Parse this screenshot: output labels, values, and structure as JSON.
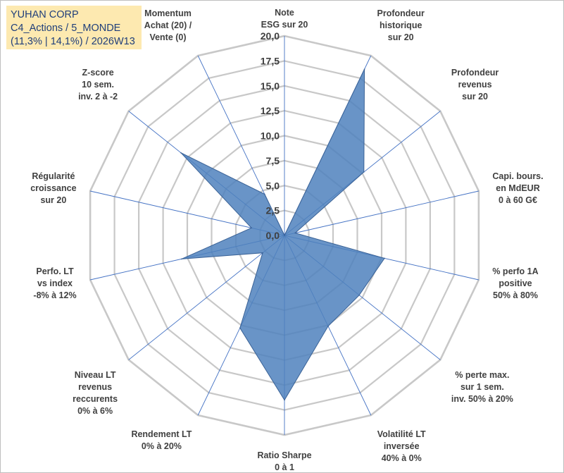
{
  "header": {
    "line1": "YUHAN CORP",
    "line2": "C4_Actions / 5_MONDE",
    "line3": "(11,3% | 14,1%) / 2026W13"
  },
  "colors": {
    "fill": "#4f81bd",
    "stroke": "#3a6296",
    "grid": "#c8c8c8",
    "spokes": "#4472c4",
    "title_bg": "#fde9b0",
    "title_text": "#1f3e7a"
  },
  "chart_data": {
    "type": "radar",
    "rmin": 0,
    "rmax": 20,
    "step": 2.5,
    "tick_labels": [
      "0,0",
      "2,5",
      "5,0",
      "7,5",
      "10,0",
      "12,5",
      "15,0",
      "17,5",
      "20,0"
    ],
    "axes": [
      [
        "Note",
        "ESG sur 20"
      ],
      [
        "Profondeur",
        "historique",
        "sur 20"
      ],
      [
        "Profondeur",
        "revenus",
        "sur 20"
      ],
      [
        "Capi. bours.",
        "en MdEUR",
        "0 à 60 G€"
      ],
      [
        "% perfo 1A",
        "positive",
        "50% à 80%"
      ],
      [
        "% perte max.",
        "sur 1 sem.",
        "inv. 50% à 20%"
      ],
      [
        "Volatilité LT",
        "inversée",
        "40% à 0%"
      ],
      [
        "Ratio Sharpe",
        "0 à 1"
      ],
      [
        "Rendement LT",
        "0% à 20%"
      ],
      [
        "Niveau LT",
        "revenus",
        "reccurents",
        "0% à 6%"
      ],
      [
        "Perfo. LT",
        "vs index",
        "-8% à 12%"
      ],
      [
        "Régularité",
        "croissance",
        "sur 20"
      ],
      [
        "Z-score",
        "10 sem.",
        "inv. 2 à -2"
      ],
      [
        "Momentum",
        "Achat (20) /",
        "Vente (0)"
      ]
    ],
    "values": [
      0,
      18.5,
      10.2,
      1.1,
      10.3,
      9.6,
      10.1,
      16.5,
      10.3,
      2.8,
      10.6,
      3.4,
      13.3,
      4.6
    ]
  }
}
